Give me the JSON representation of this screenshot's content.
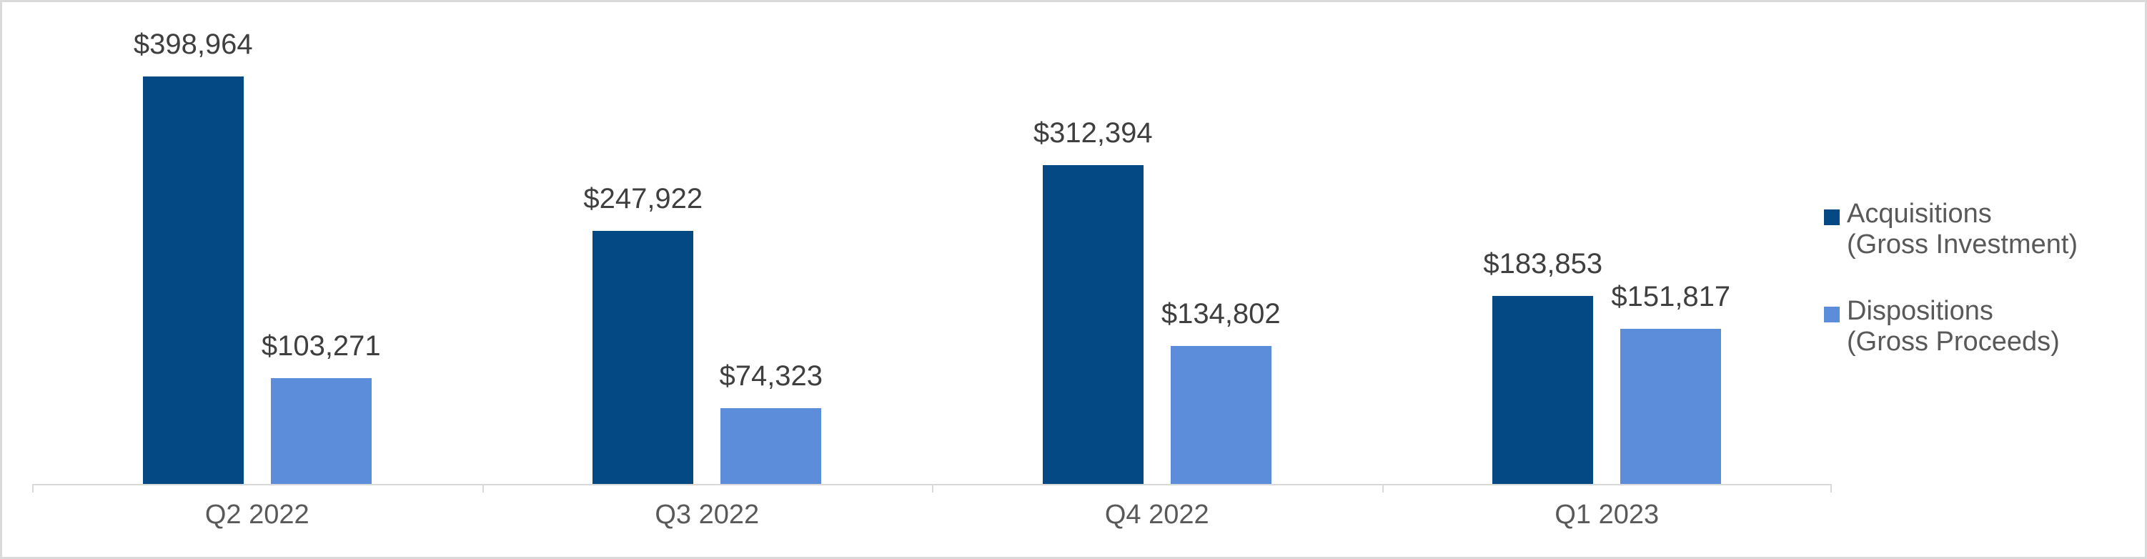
{
  "chart_data": {
    "type": "bar",
    "title": "",
    "xlabel": "",
    "ylabel": "",
    "grid": false,
    "legend_position": "right",
    "categories": [
      "Q2 2022",
      "Q3 2022",
      "Q4 2022",
      "Q1 2023"
    ],
    "series": [
      {
        "name": "Acquisitions (Gross Investment)",
        "color": "#044884",
        "values": [
          398964,
          247922,
          312394,
          183853
        ],
        "labels": [
          "$398,964",
          "$247,922",
          "$312,394",
          "$183,853"
        ]
      },
      {
        "name": "Dispositions (Gross Proceeds)",
        "color": "#5C8DDA",
        "values": [
          103271,
          74323,
          134802,
          151817
        ],
        "labels": [
          "$103,271",
          "$74,323",
          "$134,802",
          "$151,817"
        ]
      }
    ]
  },
  "legend": {
    "items": [
      {
        "line1": "Acquisitions",
        "line2": "(Gross Investment)",
        "color": "#044884"
      },
      {
        "line1": "Dispositions",
        "line2": "(Gross Proceeds)",
        "color": "#5C8DDA"
      }
    ]
  },
  "style": {
    "axis_color": "#D9D9D9",
    "data_label_color": "#3F3F3F",
    "axis_label_color": "#595959",
    "legend_text_color": "#595959",
    "frame_border_color": "#D9D9D9"
  }
}
